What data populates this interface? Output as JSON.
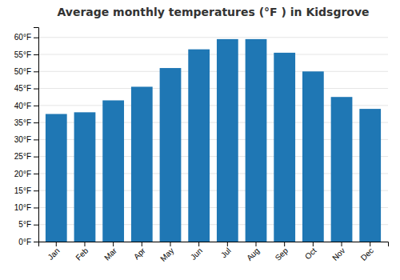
{
  "chart_data": {
    "type": "bar",
    "title": "Average monthly temperatures (°F ) in Kidsgrove",
    "categories": [
      "Jan",
      "Feb",
      "Mar",
      "Apr",
      "May",
      "Jun",
      "Jul",
      "Aug",
      "Sep",
      "Oct",
      "Nov",
      "Dec"
    ],
    "values": [
      37.5,
      38.0,
      41.5,
      45.5,
      51.0,
      56.5,
      59.5,
      59.5,
      55.5,
      50.0,
      42.5,
      39.0
    ],
    "ylim": [
      0,
      63
    ],
    "yticks": [
      {
        "value": 0,
        "label": "0°F"
      },
      {
        "value": 5,
        "label": "5°F"
      },
      {
        "value": 10,
        "label": "10°F"
      },
      {
        "value": 15,
        "label": "15°F"
      },
      {
        "value": 20,
        "label": "20°F"
      },
      {
        "value": 25,
        "label": "25°F"
      },
      {
        "value": 30,
        "label": "30°F"
      },
      {
        "value": 35,
        "label": "35°F"
      },
      {
        "value": 40,
        "label": "40°F"
      },
      {
        "value": 45,
        "label": "45°F"
      },
      {
        "value": 50,
        "label": "50°F"
      },
      {
        "value": 55,
        "label": "55°F"
      },
      {
        "value": 60,
        "label": "60°F"
      }
    ],
    "grid": true
  }
}
